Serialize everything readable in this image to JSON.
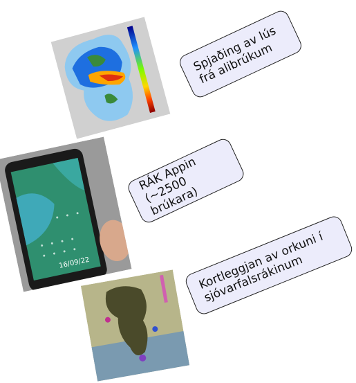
{
  "items": [
    {
      "label_lines": [
        "Spjaðing av lús",
        "frá alibrúkum"
      ]
    },
    {
      "label_lines": [
        "RÁK Appin",
        "(∼2500 brúkara)"
      ],
      "screen_text": "16/09/22"
    },
    {
      "label_lines": [
        "Kortleggjan av orkuni í",
        "sjóvarfalsrákinum"
      ]
    }
  ]
}
